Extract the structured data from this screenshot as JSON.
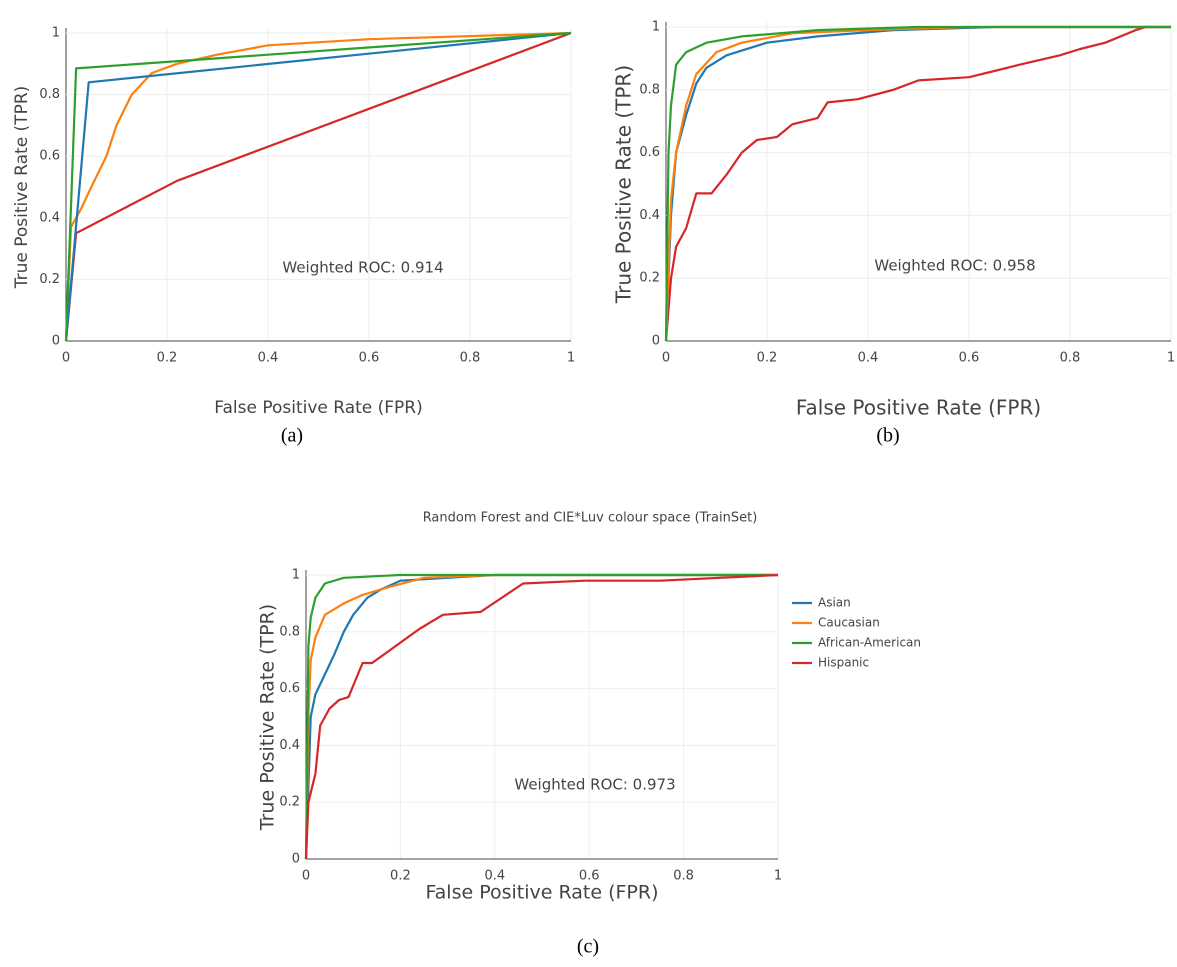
{
  "chart_data": [
    {
      "type": "line",
      "xlabel": "False Positive Rate (FPR)",
      "ylabel": "True Positive Rate (TPR)",
      "annotation": "Weighted ROC: 0.914",
      "caption": "(a)",
      "xlim": [
        0,
        1
      ],
      "ylim": [
        0,
        1
      ],
      "xticks": [
        0,
        0.2,
        0.4,
        0.6,
        0.8,
        1
      ],
      "yticks": [
        0,
        0.2,
        0.4,
        0.6,
        0.8,
        1
      ],
      "grid": true,
      "series": [
        {
          "color": "#d62728",
          "x": [
            0,
            0.02,
            0.22,
            1
          ],
          "values": [
            0,
            0.35,
            0.52,
            1
          ]
        },
        {
          "color": "#ff7f0e",
          "x": [
            0,
            0.01,
            0.03,
            0.05,
            0.08,
            0.1,
            0.13,
            0.17,
            0.22,
            0.3,
            0.4,
            0.6,
            0.8,
            1
          ],
          "values": [
            0,
            0.37,
            0.43,
            0.5,
            0.6,
            0.7,
            0.8,
            0.87,
            0.9,
            0.93,
            0.96,
            0.98,
            0.99,
            1
          ]
        },
        {
          "color": "#1f77b4",
          "x": [
            0,
            0.045,
            1
          ],
          "values": [
            0,
            0.84,
            1
          ]
        },
        {
          "color": "#2ca02c",
          "x": [
            0,
            0.02,
            1
          ],
          "values": [
            0,
            0.885,
            1
          ]
        }
      ]
    },
    {
      "type": "line",
      "xlabel": "False Positive Rate (FPR)",
      "ylabel": "True Positive Rate (TPR)",
      "annotation": "Weighted ROC: 0.958",
      "caption": "(b)",
      "xlim": [
        0,
        1
      ],
      "ylim": [
        0,
        1
      ],
      "xticks": [
        0,
        0.2,
        0.4,
        0.6,
        0.8,
        1
      ],
      "yticks": [
        0,
        0.2,
        0.4,
        0.6,
        0.8,
        1
      ],
      "grid": true,
      "series": [
        {
          "color": "#d62728",
          "x": [
            0,
            0.01,
            0.02,
            0.04,
            0.06,
            0.09,
            0.12,
            0.15,
            0.18,
            0.22,
            0.25,
            0.3,
            0.32,
            0.38,
            0.45,
            0.5,
            0.6,
            0.65,
            0.7,
            0.78,
            0.82,
            0.87,
            0.93,
            0.95,
            1
          ],
          "values": [
            0,
            0.2,
            0.3,
            0.36,
            0.47,
            0.47,
            0.53,
            0.6,
            0.64,
            0.65,
            0.69,
            0.71,
            0.76,
            0.77,
            0.8,
            0.83,
            0.84,
            0.86,
            0.88,
            0.91,
            0.93,
            0.95,
            0.99,
            1,
            1
          ]
        },
        {
          "color": "#1f77b4",
          "x": [
            0,
            0.01,
            0.02,
            0.04,
            0.06,
            0.08,
            0.12,
            0.2,
            0.3,
            0.45,
            0.65,
            1
          ],
          "values": [
            0,
            0.4,
            0.6,
            0.72,
            0.82,
            0.87,
            0.91,
            0.95,
            0.97,
            0.99,
            1,
            1
          ]
        },
        {
          "color": "#ff7f0e",
          "x": [
            0,
            0.01,
            0.02,
            0.04,
            0.06,
            0.1,
            0.15,
            0.25,
            0.4,
            0.6,
            1
          ],
          "values": [
            0,
            0.45,
            0.6,
            0.75,
            0.85,
            0.92,
            0.95,
            0.98,
            0.99,
            1,
            1
          ]
        },
        {
          "color": "#2ca02c",
          "x": [
            0,
            0.005,
            0.01,
            0.02,
            0.04,
            0.08,
            0.15,
            0.3,
            0.5,
            1
          ],
          "values": [
            0,
            0.6,
            0.75,
            0.88,
            0.92,
            0.95,
            0.97,
            0.99,
            1,
            1
          ]
        }
      ]
    },
    {
      "type": "line",
      "title": "Random Forest and CIE*Luv colour space (TrainSet)",
      "xlabel": "False Positive Rate (FPR)",
      "ylabel": "True Positive Rate (TPR)",
      "annotation": "Weighted ROC: 0.973",
      "caption": "(c)",
      "xlim": [
        0,
        1
      ],
      "ylim": [
        0,
        1
      ],
      "xticks": [
        0,
        0.2,
        0.4,
        0.6,
        0.8,
        1
      ],
      "yticks": [
        0,
        0.2,
        0.4,
        0.6,
        0.8,
        1
      ],
      "grid": true,
      "legend": "right",
      "series": [
        {
          "name": "Asian",
          "color": "#1f77b4",
          "x": [
            0,
            0.01,
            0.02,
            0.04,
            0.06,
            0.08,
            0.1,
            0.13,
            0.16,
            0.2,
            0.3,
            0.4,
            1
          ],
          "values": [
            0,
            0.5,
            0.58,
            0.65,
            0.72,
            0.8,
            0.86,
            0.92,
            0.95,
            0.98,
            0.99,
            1,
            1
          ]
        },
        {
          "name": "Caucasian",
          "color": "#ff7f0e",
          "x": [
            0,
            0.005,
            0.01,
            0.02,
            0.04,
            0.08,
            0.12,
            0.18,
            0.25,
            0.4,
            1
          ],
          "values": [
            0,
            0.5,
            0.7,
            0.78,
            0.86,
            0.9,
            0.93,
            0.96,
            0.99,
            1,
            1
          ]
        },
        {
          "name": "African-American",
          "color": "#2ca02c",
          "x": [
            0,
            0.005,
            0.01,
            0.02,
            0.04,
            0.08,
            0.2,
            1
          ],
          "values": [
            0,
            0.75,
            0.85,
            0.92,
            0.97,
            0.99,
            1,
            1
          ]
        },
        {
          "name": "Hispanic",
          "color": "#d62728",
          "x": [
            0,
            0.005,
            0.02,
            0.03,
            0.05,
            0.07,
            0.09,
            0.12,
            0.14,
            0.24,
            0.29,
            0.37,
            0.46,
            0.59,
            0.75,
            1
          ],
          "values": [
            0,
            0.2,
            0.3,
            0.47,
            0.53,
            0.56,
            0.57,
            0.69,
            0.69,
            0.81,
            0.86,
            0.87,
            0.97,
            0.98,
            0.98,
            1
          ]
        }
      ]
    }
  ]
}
